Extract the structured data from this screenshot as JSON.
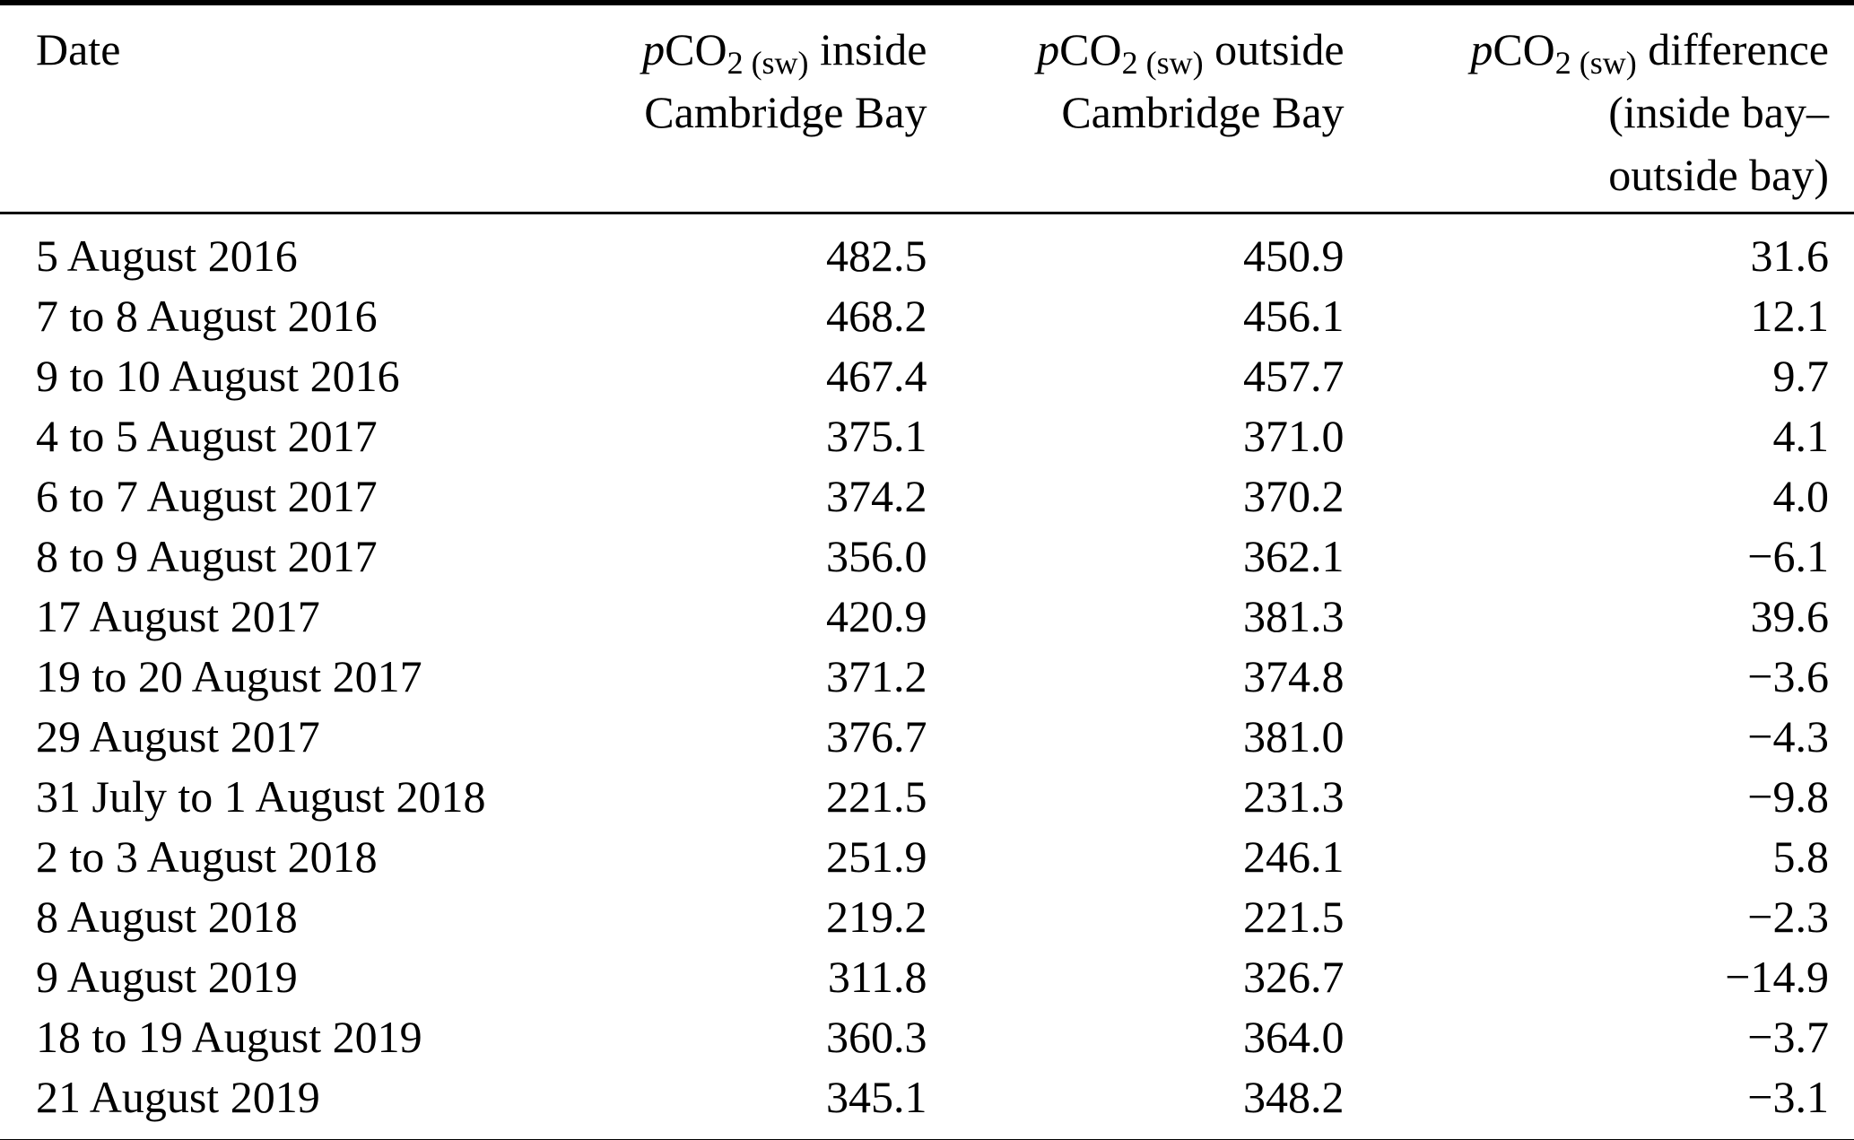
{
  "table": {
    "headers": {
      "date": "Date",
      "inside": {
        "p": "p",
        "co": "CO",
        "sub": "2 (sw)",
        "rest": " inside",
        "line2": "Cambridge Bay"
      },
      "outside": {
        "p": "p",
        "co": "CO",
        "sub": "2 (sw)",
        "rest": " outside",
        "line2": "Cambridge Bay"
      },
      "difference": {
        "p": "p",
        "co": "CO",
        "sub": "2 (sw)",
        "rest": " difference",
        "line2": "(inside bay–",
        "line3": "outside bay)"
      }
    },
    "rows": [
      {
        "date": "5 August 2016",
        "inside": "482.5",
        "outside": "450.9",
        "difference": "31.6"
      },
      {
        "date": "7 to 8 August 2016",
        "inside": "468.2",
        "outside": "456.1",
        "difference": "12.1"
      },
      {
        "date": "9 to 10 August 2016",
        "inside": "467.4",
        "outside": "457.7",
        "difference": "9.7"
      },
      {
        "date": "4 to 5 August 2017",
        "inside": "375.1",
        "outside": "371.0",
        "difference": "4.1"
      },
      {
        "date": "6 to 7 August 2017",
        "inside": "374.2",
        "outside": "370.2",
        "difference": "4.0"
      },
      {
        "date": "8 to 9 August 2017",
        "inside": "356.0",
        "outside": "362.1",
        "difference": "−6.1"
      },
      {
        "date": "17 August 2017",
        "inside": "420.9",
        "outside": "381.3",
        "difference": "39.6"
      },
      {
        "date": "19 to 20 August 2017",
        "inside": "371.2",
        "outside": "374.8",
        "difference": "−3.6"
      },
      {
        "date": "29 August 2017",
        "inside": "376.7",
        "outside": "381.0",
        "difference": "−4.3"
      },
      {
        "date": "31 July to 1 August 2018",
        "inside": "221.5",
        "outside": "231.3",
        "difference": "−9.8"
      },
      {
        "date": "2 to 3 August 2018",
        "inside": "251.9",
        "outside": "246.1",
        "difference": "5.8"
      },
      {
        "date": "8 August 2018",
        "inside": "219.2",
        "outside": "221.5",
        "difference": "−2.3"
      },
      {
        "date": "9 August 2019",
        "inside": "311.8",
        "outside": "326.7",
        "difference": "−14.9"
      },
      {
        "date": "18 to 19 August 2019",
        "inside": "360.3",
        "outside": "364.0",
        "difference": "−3.7"
      },
      {
        "date": "21 August 2019",
        "inside": "345.1",
        "outside": "348.2",
        "difference": "−3.1"
      }
    ],
    "colors": {
      "text": "#000000",
      "background": "#ffffff",
      "rule": "#000000"
    }
  }
}
